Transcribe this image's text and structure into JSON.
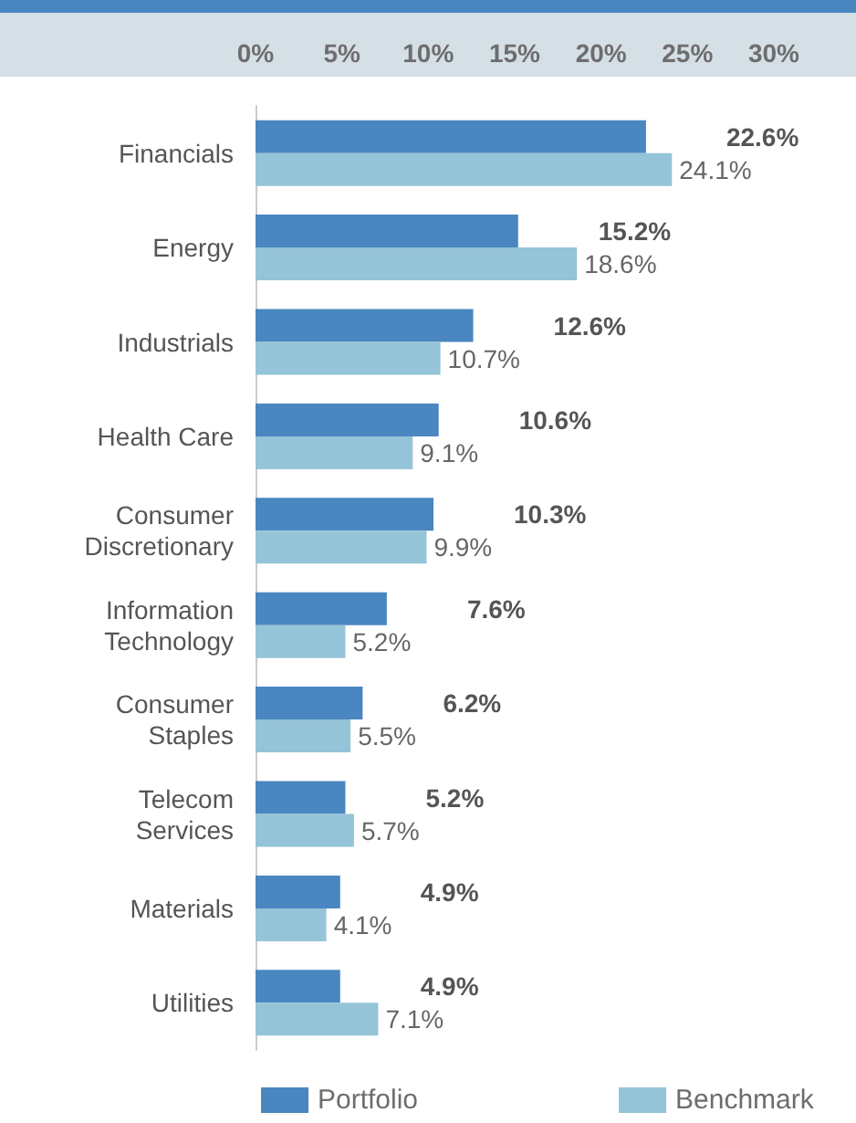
{
  "chart_data": {
    "type": "bar",
    "orientation": "horizontal",
    "categories": [
      "Financials",
      "Energy",
      "Industrials",
      "Health Care",
      "Consumer\nDiscretionary",
      "Information\nTechnology",
      "Consumer\nStaples",
      "Telecom\nServices",
      "Materials",
      "Utilities"
    ],
    "series": [
      {
        "name": "Portfolio",
        "color": "#4a86c0",
        "values": [
          22.6,
          15.2,
          12.6,
          10.6,
          10.3,
          7.6,
          6.2,
          5.2,
          4.9,
          4.9
        ],
        "value_labels": [
          "22.6%",
          "15.2%",
          "12.6%",
          "10.6%",
          "10.3%",
          "7.6%",
          "6.2%",
          "5.2%",
          "4.9%",
          "4.9%"
        ]
      },
      {
        "name": "Benchmark",
        "color": "#95c4d8",
        "values": [
          24.1,
          18.6,
          10.7,
          9.1,
          9.9,
          5.2,
          5.5,
          5.7,
          4.1,
          7.1
        ],
        "value_labels": [
          "24.1%",
          "18.6%",
          "10.7%",
          "9.1%",
          "9.9%",
          "5.2%",
          "5.5%",
          "5.7%",
          "4.1%",
          "7.1%"
        ]
      }
    ],
    "xlim": [
      0,
      30
    ],
    "xticks": [
      {
        "value": 0,
        "label": "0%"
      },
      {
        "value": 5,
        "label": "5%"
      },
      {
        "value": 10,
        "label": "10%"
      },
      {
        "value": 15,
        "label": "15%"
      },
      {
        "value": 20,
        "label": "20%"
      },
      {
        "value": 25,
        "label": "25%"
      },
      {
        "value": 30,
        "label": "30%"
      }
    ],
    "grid": false,
    "legend": "bottom"
  }
}
